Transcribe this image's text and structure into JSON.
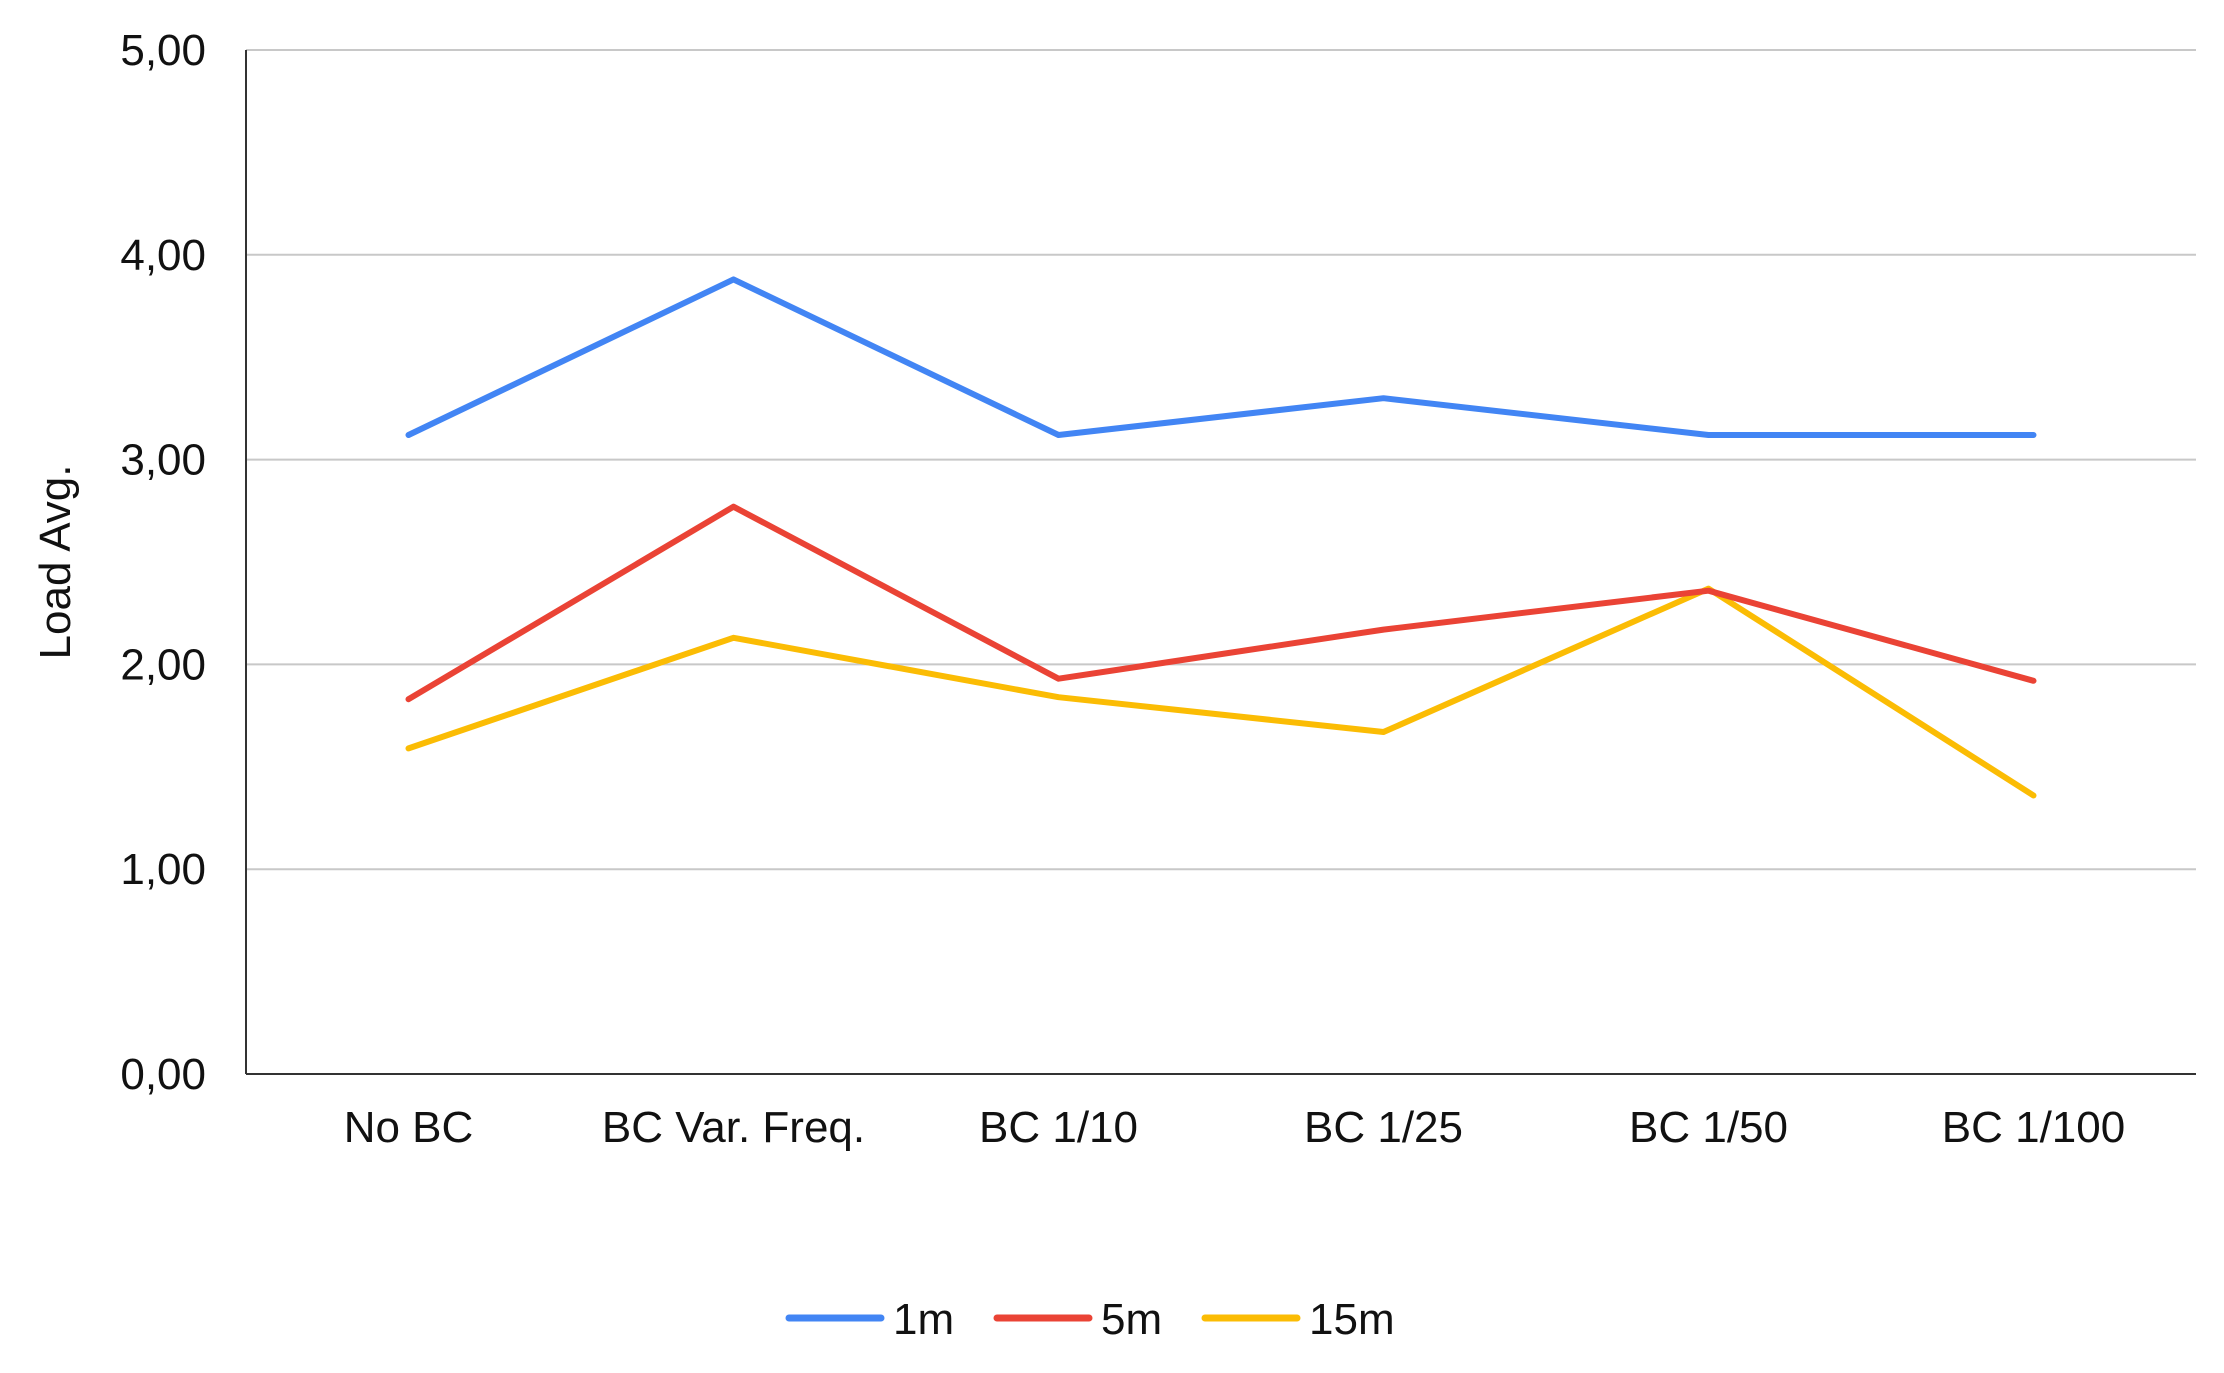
{
  "chart_data": {
    "type": "line",
    "title": "",
    "xlabel": "",
    "ylabel": "Load Avg.",
    "ylim": [
      0,
      5
    ],
    "yticks": [
      "0,00",
      "1,00",
      "2,00",
      "3,00",
      "4,00",
      "5,00"
    ],
    "categories": [
      "No BC",
      "BC Var. Freq.",
      "BC 1/10",
      "BC 1/25",
      "BC 1/50",
      "BC 1/100"
    ],
    "series": [
      {
        "name": "1m",
        "color": "#4285f4",
        "values": [
          3.12,
          3.88,
          3.12,
          3.3,
          3.12,
          3.12
        ]
      },
      {
        "name": "5m",
        "color": "#ea4335",
        "values": [
          1.83,
          2.77,
          1.93,
          2.17,
          2.36,
          1.92
        ]
      },
      {
        "name": "15m",
        "color": "#fbbc04",
        "values": [
          1.59,
          2.13,
          1.84,
          1.67,
          2.37,
          1.36
        ]
      }
    ],
    "grid": true,
    "legend_position": "bottom"
  }
}
